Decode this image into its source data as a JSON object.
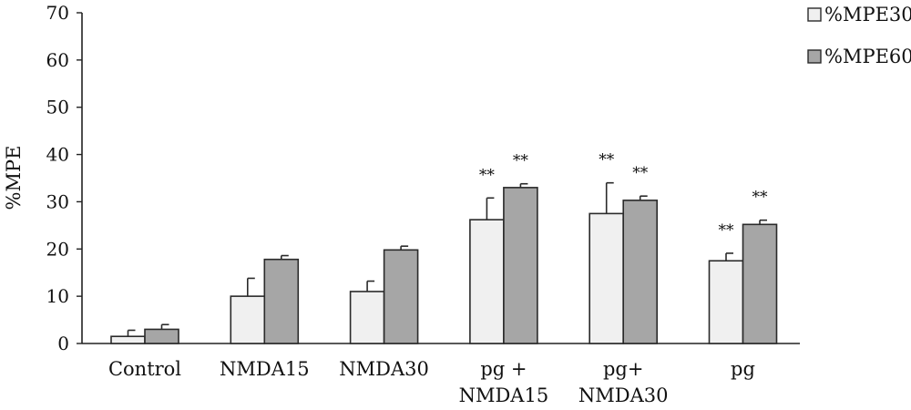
{
  "chart_data": {
    "type": "bar",
    "categories": [
      [
        "Control"
      ],
      [
        "NMDA15"
      ],
      [
        "NMDA30"
      ],
      [
        "pg +",
        "NMDA15"
      ],
      [
        "pg+",
        "NMDA30"
      ],
      [
        "pg"
      ]
    ],
    "series": [
      {
        "name": "%MPE30",
        "color": "#f0f0f0",
        "values": [
          1.5,
          10,
          11,
          26.2,
          27.5,
          17.5
        ],
        "errors": [
          1.3,
          3.8,
          2.2,
          4.6,
          6.5,
          1.6
        ],
        "significance": [
          "",
          "",
          "",
          "**",
          "**",
          "**"
        ]
      },
      {
        "name": "%MPE60",
        "color": "#a6a6a6",
        "values": [
          3,
          17.8,
          19.8,
          33,
          30.3,
          25.2
        ],
        "errors": [
          1.0,
          0.8,
          0.8,
          0.8,
          0.9,
          0.9
        ],
        "significance": [
          "",
          "",
          "",
          "**",
          "**",
          "**"
        ]
      }
    ],
    "title": "",
    "xlabel": "",
    "ylabel": "%MPE",
    "ylim": [
      0,
      70
    ],
    "yticks": [
      0,
      10,
      20,
      30,
      40,
      50,
      60,
      70
    ],
    "grid": false,
    "legend_position": "top-right"
  }
}
